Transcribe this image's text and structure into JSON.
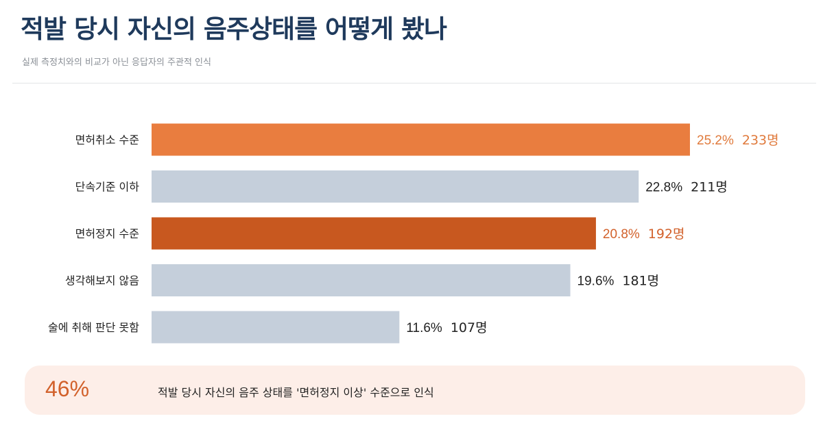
{
  "header": {
    "title": "적발 당시 자신의 음주상태를 어떻게 봤나",
    "subtitle": "실제 측정치와의 비교가 아닌 응답자의 주관적 인식"
  },
  "chart_data": {
    "type": "bar",
    "orientation": "horizontal",
    "title": "적발 당시 자신의 음주상태를 어떻게 봤나",
    "subtitle": "실제 측정치와의 비교가 아닌 응답자의 주관적 인식",
    "categories": [
      "면허취소 수준",
      "단속기준 이하",
      "면허정지 수준",
      "생각해보지 않음",
      "술에 취해 판단 못함"
    ],
    "values": [
      25.2,
      22.8,
      20.8,
      19.6,
      11.6
    ],
    "counts": [
      233,
      211,
      192,
      181,
      107
    ],
    "value_labels": [
      "25.2%",
      "22.8%",
      "20.8%",
      "19.6%",
      "11.6%"
    ],
    "count_labels": [
      "233명",
      "211명",
      "192명",
      "181명",
      "107명"
    ],
    "bar_colors": [
      "#e97d3f",
      "#c5cfdb",
      "#c8581f",
      "#c5cfdb",
      "#c5cfdb"
    ],
    "label_colors": [
      "#e07a3c",
      "#222222",
      "#d2612b",
      "#222222",
      "#222222"
    ],
    "xlim": [
      0,
      25.2
    ],
    "grid": false,
    "xlabel": "",
    "ylabel": ""
  },
  "callout": {
    "percent": "46%",
    "text": "적발 당시 자신의 음주 상태를 '면허정지 이상' 수준으로 인식"
  },
  "colors": {
    "title": "#1f3a5c",
    "accent": "#e97d3f",
    "accent_dark": "#c8581f",
    "neutral_bar": "#c5cfdb",
    "callout_bg": "#fdeee8"
  }
}
